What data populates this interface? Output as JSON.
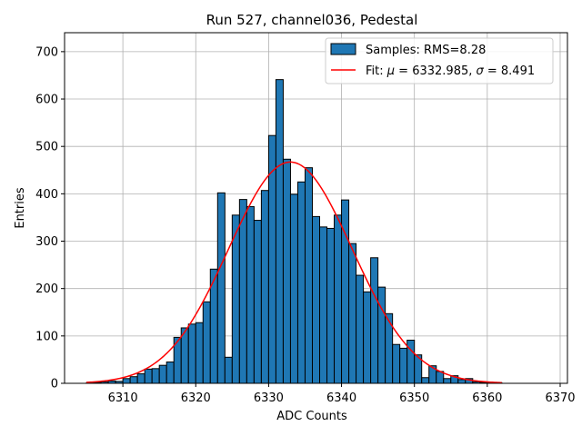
{
  "chart_data": {
    "type": "bar",
    "title": "Run 527, channel036, Pedestal",
    "xlabel": "ADC Counts",
    "ylabel": "Entries",
    "xlim": [
      6302.0,
      6371.0
    ],
    "ylim": [
      0,
      740
    ],
    "xticks": [
      6310,
      6320,
      6330,
      6340,
      6350,
      6360,
      6370
    ],
    "yticks": [
      0,
      100,
      200,
      300,
      400,
      500,
      600,
      700
    ],
    "grid": true,
    "legend_position": "top-right",
    "bin_width": 1,
    "bins": [
      [
        6305,
        1
      ],
      [
        6306,
        2
      ],
      [
        6307,
        3
      ],
      [
        6308,
        5
      ],
      [
        6309,
        4
      ],
      [
        6310,
        10
      ],
      [
        6311,
        14
      ],
      [
        6312,
        20
      ],
      [
        6313,
        30
      ],
      [
        6314,
        31
      ],
      [
        6315,
        38
      ],
      [
        6316,
        45
      ],
      [
        6317,
        97
      ],
      [
        6318,
        117
      ],
      [
        6319,
        125
      ],
      [
        6320,
        128
      ],
      [
        6321,
        172
      ],
      [
        6322,
        241
      ],
      [
        6323,
        402
      ],
      [
        6324,
        55
      ],
      [
        6325,
        355
      ],
      [
        6326,
        388
      ],
      [
        6327,
        373
      ],
      [
        6328,
        344
      ],
      [
        6329,
        407
      ],
      [
        6330,
        523
      ],
      [
        6331,
        641
      ],
      [
        6332,
        473
      ],
      [
        6333,
        399
      ],
      [
        6334,
        425
      ],
      [
        6335,
        455
      ],
      [
        6336,
        352
      ],
      [
        6337,
        330
      ],
      [
        6338,
        327
      ],
      [
        6339,
        355
      ],
      [
        6340,
        387
      ],
      [
        6341,
        295
      ],
      [
        6342,
        228
      ],
      [
        6343,
        193
      ],
      [
        6344,
        265
      ],
      [
        6345,
        203
      ],
      [
        6346,
        147
      ],
      [
        6347,
        82
      ],
      [
        6348,
        74
      ],
      [
        6349,
        91
      ],
      [
        6350,
        60
      ],
      [
        6351,
        12
      ],
      [
        6352,
        37
      ],
      [
        6353,
        25
      ],
      [
        6354,
        10
      ],
      [
        6355,
        16
      ],
      [
        6356,
        8
      ],
      [
        6357,
        10
      ],
      [
        6358,
        3
      ],
      [
        6359,
        2
      ],
      [
        6360,
        1
      ],
      [
        6361,
        1
      ]
    ],
    "fit": {
      "mu": 6332.985,
      "sigma": 8.491,
      "peak": 467,
      "range": [
        6305,
        6362
      ]
    },
    "legend": [
      {
        "label": "Samples: RMS=8.28",
        "color": "#1f77b4"
      },
      {
        "label_prefix": "Fit: ",
        "mu_symbol": "μ",
        "mu_text": " = 6332.985, ",
        "sigma_symbol": "σ",
        "sigma_text": " = 8.491",
        "color": "#ff0000"
      }
    ]
  }
}
